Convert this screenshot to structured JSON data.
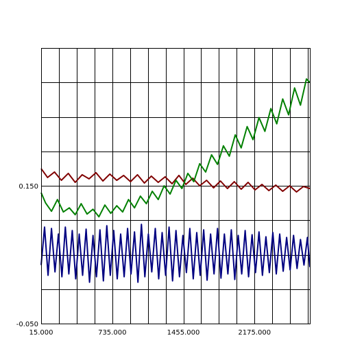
{
  "chart_data": {
    "type": "line",
    "title": "",
    "xlabel": "",
    "ylabel": "",
    "xlim": [
      15,
      2735
    ],
    "ylim": [
      -0.05,
      0.35
    ],
    "grid": true,
    "x_grid_step": 180,
    "y_grid_step": 0.05,
    "x_tick_labels": [
      "15.000",
      "735.000",
      "1455.000",
      "2175.000"
    ],
    "x_tick_values": [
      15,
      735,
      1455,
      2175
    ],
    "y_tick_labels": [
      "-0.050",
      "0.150"
    ],
    "y_tick_values": [
      -0.05,
      0.15
    ],
    "series": [
      {
        "color": "#800000",
        "x": [
          15,
          80,
          150,
          220,
          290,
          360,
          430,
          500,
          570,
          640,
          710,
          780,
          850,
          920,
          990,
          1060,
          1130,
          1200,
          1270,
          1340,
          1410,
          1480,
          1550,
          1620,
          1690,
          1760,
          1830,
          1900,
          1970,
          2040,
          2110,
          2180,
          2250,
          2320,
          2390,
          2460,
          2530,
          2600,
          2670,
          2735
        ],
        "y": [
          0.175,
          0.162,
          0.17,
          0.158,
          0.168,
          0.155,
          0.166,
          0.16,
          0.169,
          0.157,
          0.167,
          0.158,
          0.165,
          0.156,
          0.166,
          0.154,
          0.164,
          0.155,
          0.163,
          0.153,
          0.165,
          0.152,
          0.161,
          0.15,
          0.158,
          0.147,
          0.157,
          0.146,
          0.156,
          0.145,
          0.155,
          0.144,
          0.152,
          0.143,
          0.151,
          0.142,
          0.15,
          0.141,
          0.149,
          0.146
        ]
      },
      {
        "color": "#008000",
        "x": [
          15,
          60,
          120,
          180,
          240,
          300,
          360,
          420,
          480,
          540,
          600,
          660,
          720,
          780,
          840,
          900,
          960,
          1020,
          1080,
          1140,
          1200,
          1260,
          1320,
          1380,
          1440,
          1500,
          1560,
          1620,
          1680,
          1740,
          1800,
          1860,
          1920,
          1980,
          2040,
          2100,
          2160,
          2220,
          2280,
          2340,
          2400,
          2460,
          2520,
          2580,
          2640,
          2700,
          2735
        ],
        "y": [
          0.14,
          0.125,
          0.113,
          0.13,
          0.112,
          0.118,
          0.108,
          0.124,
          0.109,
          0.116,
          0.105,
          0.122,
          0.11,
          0.121,
          0.112,
          0.13,
          0.118,
          0.135,
          0.124,
          0.142,
          0.13,
          0.15,
          0.138,
          0.158,
          0.146,
          0.168,
          0.156,
          0.182,
          0.17,
          0.195,
          0.181,
          0.208,
          0.193,
          0.224,
          0.205,
          0.236,
          0.217,
          0.249,
          0.229,
          0.262,
          0.24,
          0.276,
          0.253,
          0.292,
          0.267,
          0.305,
          0.3
        ]
      },
      {
        "color": "#000080",
        "x": [
          15,
          50,
          85,
          120,
          155,
          190,
          225,
          260,
          295,
          330,
          365,
          400,
          435,
          470,
          505,
          540,
          575,
          610,
          645,
          680,
          715,
          750,
          785,
          820,
          855,
          890,
          925,
          960,
          995,
          1030,
          1065,
          1100,
          1135,
          1170,
          1205,
          1240,
          1275,
          1310,
          1345,
          1380,
          1415,
          1450,
          1485,
          1520,
          1555,
          1590,
          1625,
          1660,
          1695,
          1730,
          1765,
          1800,
          1835,
          1870,
          1905,
          1940,
          1975,
          2010,
          2045,
          2080,
          2115,
          2150,
          2185,
          2220,
          2255,
          2290,
          2325,
          2360,
          2395,
          2430,
          2465,
          2500,
          2535,
          2570,
          2605,
          2640,
          2675,
          2710,
          2735
        ],
        "y": [
          0.035,
          0.09,
          0.02,
          0.088,
          0.025,
          0.08,
          0.018,
          0.09,
          0.022,
          0.085,
          0.015,
          0.08,
          0.02,
          0.087,
          0.01,
          0.078,
          0.018,
          0.086,
          0.012,
          0.092,
          0.02,
          0.085,
          0.015,
          0.08,
          0.018,
          0.088,
          0.022,
          0.083,
          0.01,
          0.094,
          0.018,
          0.08,
          0.025,
          0.088,
          0.015,
          0.082,
          0.02,
          0.09,
          0.012,
          0.085,
          0.018,
          0.078,
          0.024,
          0.088,
          0.015,
          0.082,
          0.02,
          0.086,
          0.013,
          0.08,
          0.022,
          0.088,
          0.016,
          0.08,
          0.022,
          0.086,
          0.014,
          0.078,
          0.022,
          0.085,
          0.018,
          0.079,
          0.024,
          0.083,
          0.02,
          0.076,
          0.024,
          0.082,
          0.022,
          0.08,
          0.026,
          0.075,
          0.028,
          0.078,
          0.03,
          0.072,
          0.035,
          0.075,
          0.032
        ]
      }
    ]
  }
}
